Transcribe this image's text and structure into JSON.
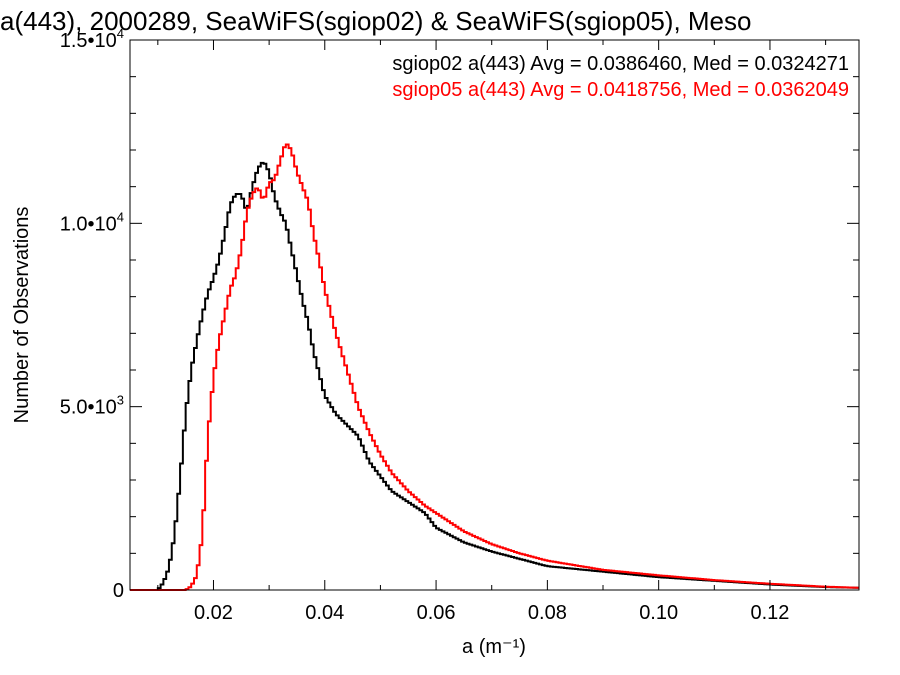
{
  "chart_data": {
    "type": "line",
    "title": "a(443), 2000289, SeaWiFS(sgiop02) & SeaWiFS(sgiop05), Meso",
    "xlabel": "a (m⁻¹)",
    "ylabel": "Number of Observations",
    "xlim": [
      0.005,
      0.136
    ],
    "ylim": [
      0,
      15000
    ],
    "x_ticks": [
      {
        "value": 0.02,
        "label": "0.02"
      },
      {
        "value": 0.04,
        "label": "0.04"
      },
      {
        "value": 0.06,
        "label": "0.06"
      },
      {
        "value": 0.08,
        "label": "0.08"
      },
      {
        "value": 0.1,
        "label": "0.10"
      },
      {
        "value": 0.12,
        "label": "0.12"
      }
    ],
    "y_ticks": [
      {
        "value": 0,
        "mantissa": "0",
        "exponent": ""
      },
      {
        "value": 5000,
        "mantissa": "5.0•10",
        "exponent": "3"
      },
      {
        "value": 10000,
        "mantissa": "1.0•10",
        "exponent": "4"
      },
      {
        "value": 15000,
        "mantissa": "1.5•10",
        "exponent": "4"
      }
    ],
    "grid": false,
    "legend_position": "top-right",
    "series": [
      {
        "name": "sgiop02 a(443) Avg = 0.0386460, Med = 0.0324271",
        "color": "#000000",
        "x": [
          0.005,
          0.01,
          0.011,
          0.012,
          0.013,
          0.014,
          0.015,
          0.016,
          0.017,
          0.018,
          0.019,
          0.02,
          0.021,
          0.022,
          0.023,
          0.024,
          0.025,
          0.026,
          0.027,
          0.028,
          0.029,
          0.03,
          0.031,
          0.032,
          0.033,
          0.034,
          0.035,
          0.036,
          0.037,
          0.038,
          0.039,
          0.04,
          0.042,
          0.044,
          0.046,
          0.048,
          0.05,
          0.052,
          0.055,
          0.058,
          0.06,
          0.065,
          0.07,
          0.075,
          0.08,
          0.09,
          0.1,
          0.11,
          0.12,
          0.13,
          0.136
        ],
        "values": [
          0,
          0,
          200,
          600,
          1500,
          3000,
          4800,
          6000,
          6800,
          7500,
          8100,
          8500,
          9000,
          9700,
          10500,
          10800,
          10800,
          10300,
          11000,
          11500,
          11700,
          11400,
          10700,
          10300,
          10000,
          9300,
          8600,
          7900,
          7300,
          6500,
          5900,
          5300,
          4800,
          4500,
          4200,
          3500,
          3100,
          2700,
          2400,
          2100,
          1700,
          1300,
          1050,
          850,
          650,
          500,
          350,
          250,
          150,
          80,
          60
        ]
      },
      {
        "name": "sgiop05 a(443) Avg = 0.0418756, Med = 0.0362049",
        "color": "#ff0000",
        "x": [
          0.005,
          0.015,
          0.016,
          0.017,
          0.018,
          0.019,
          0.02,
          0.021,
          0.022,
          0.023,
          0.024,
          0.025,
          0.026,
          0.027,
          0.028,
          0.029,
          0.03,
          0.031,
          0.032,
          0.033,
          0.034,
          0.035,
          0.036,
          0.037,
          0.038,
          0.039,
          0.04,
          0.042,
          0.044,
          0.046,
          0.048,
          0.05,
          0.052,
          0.055,
          0.058,
          0.06,
          0.065,
          0.07,
          0.075,
          0.08,
          0.09,
          0.1,
          0.11,
          0.12,
          0.13,
          0.136
        ],
        "values": [
          0,
          0,
          100,
          400,
          1500,
          4200,
          5800,
          6800,
          7500,
          8200,
          8600,
          9300,
          10300,
          10800,
          11000,
          10600,
          11100,
          11200,
          11700,
          12200,
          12000,
          11400,
          11000,
          10600,
          9700,
          9000,
          8200,
          7000,
          6000,
          5000,
          4300,
          3700,
          3200,
          2700,
          2300,
          2100,
          1600,
          1250,
          1000,
          800,
          550,
          400,
          270,
          170,
          90,
          60
        ]
      }
    ]
  }
}
